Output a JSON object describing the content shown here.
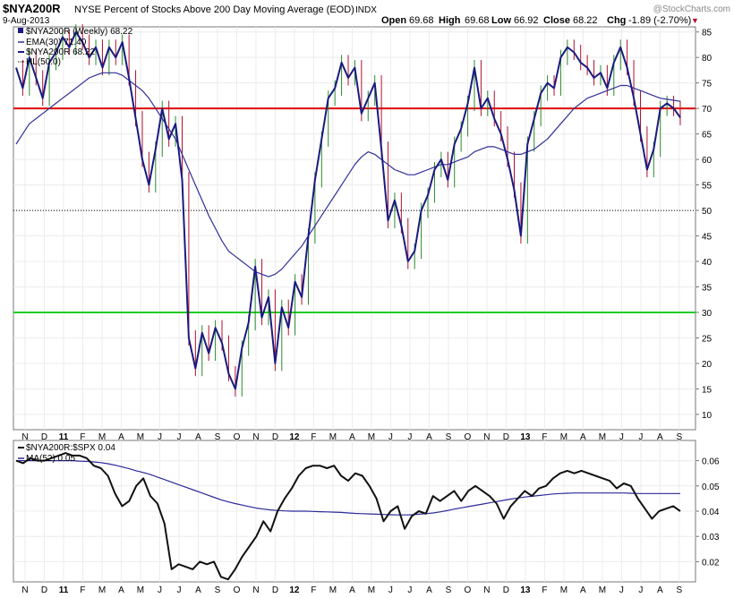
{
  "header": {
    "symbol": "$NYA200R",
    "description": "NYSE Percent of Stocks Above 200 Day Moving Average (EOD)",
    "exchange": "INDX",
    "date": "9-Aug-2013",
    "watermark": "@StockCharts.com",
    "ohlc": {
      "open_label": "Open",
      "open": "69.68",
      "high_label": "High",
      "high": "69.68",
      "low_label": "Low",
      "low": "66.92",
      "close_label": "Close",
      "close": "68.22",
      "chg_label": "Chg",
      "chg": "-1.89 (-2.70%)"
    },
    "chg_marker": "▼"
  },
  "colors": {
    "up_bar": "#2a8a2a",
    "down_bar": "#b01030",
    "main_line": "#1a1a80",
    "ema_line": "#30309a",
    "red_hline": "#e00000",
    "green_hline": "#22cc22",
    "ratio_line": "#111111",
    "ma_line": "#2a2a99"
  },
  "chart_data": [
    {
      "type": "line",
      "title": "$NYA200R (Weekly) 68.22",
      "legend": [
        {
          "label": "EMA(30) 71.40",
          "style": "line"
        },
        {
          "label": "$NYA200R 68.22",
          "style": "line"
        },
        {
          "label": "HL(50.0)",
          "style": "dotted"
        }
      ],
      "ylim": [
        7,
        86
      ],
      "yticks": [
        10,
        15,
        20,
        25,
        30,
        35,
        40,
        45,
        50,
        55,
        60,
        65,
        70,
        75,
        80,
        85
      ],
      "xticks": [
        "N",
        "D",
        "11",
        "F",
        "M",
        "A",
        "M",
        "J",
        "J",
        "A",
        "S",
        "O",
        "N",
        "D",
        "12",
        "F",
        "M",
        "A",
        "M",
        "J",
        "J",
        "A",
        "S",
        "O",
        "N",
        "D",
        "13",
        "F",
        "M",
        "A",
        "M",
        "J",
        "J",
        "A",
        "S"
      ],
      "hlines": [
        {
          "y": 70,
          "style": "red"
        },
        {
          "y": 30,
          "style": "green"
        },
        {
          "y": 50,
          "style": "dotted"
        }
      ],
      "series": [
        {
          "name": "$NYA200R",
          "values": [
            78,
            74,
            80,
            76,
            72,
            79,
            81,
            84,
            82,
            85,
            83,
            80,
            82,
            78,
            82,
            80,
            83,
            76,
            68,
            60,
            55,
            62,
            70,
            64,
            67,
            56,
            25,
            19,
            26,
            22,
            27,
            24,
            18,
            15,
            23,
            28,
            39,
            29,
            33,
            20,
            31,
            27,
            36,
            33,
            45,
            56,
            64,
            72,
            74,
            79,
            76,
            78,
            69,
            72,
            75,
            62,
            48,
            52,
            47,
            40,
            42,
            50,
            53,
            58,
            60,
            56,
            63,
            66,
            71,
            78,
            70,
            72,
            68,
            65,
            60,
            54,
            45,
            63,
            68,
            73,
            75,
            74,
            80,
            82,
            81,
            79,
            78,
            76,
            77,
            74,
            79,
            82,
            78,
            72,
            65,
            58,
            62,
            70,
            71,
            70,
            68.22
          ]
        },
        {
          "name": "EMA(30)",
          "values": [
            63,
            65,
            67,
            68,
            69,
            70,
            71,
            72,
            73,
            74,
            75,
            76,
            76.5,
            77,
            77,
            77,
            76.5,
            75.5,
            74.5,
            73.5,
            72,
            70,
            68,
            66,
            64,
            61,
            58,
            55,
            52,
            49,
            46.5,
            44,
            42,
            41,
            40,
            39,
            38,
            37.5,
            37,
            37.5,
            38.5,
            40,
            41.5,
            43,
            45,
            47,
            49,
            51,
            53,
            55,
            57,
            59,
            60.5,
            61.5,
            61,
            60,
            59,
            58,
            57.5,
            57,
            57,
            57.5,
            58,
            58.5,
            59,
            59,
            59.5,
            60,
            60.5,
            61.5,
            62,
            62.5,
            62.5,
            62,
            61.5,
            61,
            61,
            61.5,
            62,
            63,
            64,
            65.5,
            67,
            68.5,
            70,
            71,
            72,
            72.5,
            73,
            73.5,
            74,
            74.5,
            74.5,
            74,
            73.5,
            73,
            72.5,
            72,
            71.8,
            71.6,
            71.4
          ]
        }
      ]
    },
    {
      "type": "line",
      "title": "$NYA200R:$SPX 0.04",
      "legend": [
        {
          "label": "MA(52) 0.05",
          "style": "line"
        }
      ],
      "ylim": [
        0.012,
        0.068
      ],
      "yticks": [
        0.02,
        0.03,
        0.04,
        0.05,
        0.06
      ],
      "xticks": [
        "N",
        "D",
        "11",
        "F",
        "M",
        "A",
        "M",
        "J",
        "J",
        "A",
        "S",
        "O",
        "N",
        "D",
        "12",
        "F",
        "M",
        "A",
        "M",
        "J",
        "J",
        "A",
        "S",
        "O",
        "N",
        "D",
        "13",
        "F",
        "M",
        "A",
        "M",
        "J",
        "J",
        "A",
        "S"
      ],
      "series": [
        {
          "name": "$NYA200R:$SPX",
          "values": [
            0.06,
            0.059,
            0.061,
            0.06,
            0.06,
            0.061,
            0.062,
            0.063,
            0.062,
            0.062,
            0.061,
            0.058,
            0.057,
            0.054,
            0.047,
            0.042,
            0.044,
            0.05,
            0.053,
            0.046,
            0.043,
            0.035,
            0.017,
            0.019,
            0.018,
            0.017,
            0.02,
            0.019,
            0.02,
            0.014,
            0.013,
            0.017,
            0.022,
            0.026,
            0.03,
            0.036,
            0.032,
            0.04,
            0.045,
            0.049,
            0.054,
            0.057,
            0.058,
            0.058,
            0.057,
            0.058,
            0.054,
            0.052,
            0.055,
            0.054,
            0.05,
            0.045,
            0.036,
            0.04,
            0.042,
            0.033,
            0.038,
            0.04,
            0.039,
            0.046,
            0.044,
            0.046,
            0.048,
            0.044,
            0.048,
            0.05,
            0.048,
            0.046,
            0.043,
            0.037,
            0.042,
            0.045,
            0.048,
            0.046,
            0.049,
            0.05,
            0.053,
            0.055,
            0.056,
            0.055,
            0.056,
            0.055,
            0.054,
            0.053,
            0.052,
            0.049,
            0.051,
            0.05,
            0.045,
            0.041,
            0.037,
            0.04,
            0.041,
            0.042,
            0.04
          ]
        },
        {
          "name": "MA(52)",
          "values": [
            0.06,
            0.06,
            0.06,
            0.06,
            0.06,
            0.06,
            0.06,
            0.06,
            0.06,
            0.0598,
            0.0597,
            0.0595,
            0.0592,
            0.0588,
            0.0582,
            0.0575,
            0.0568,
            0.056,
            0.0553,
            0.0545,
            0.0535,
            0.0525,
            0.0515,
            0.0505,
            0.0495,
            0.0485,
            0.0475,
            0.0465,
            0.0455,
            0.0445,
            0.0437,
            0.043,
            0.0424,
            0.0418,
            0.0412,
            0.0408,
            0.0405,
            0.0403,
            0.0401,
            0.04,
            0.04,
            0.04,
            0.0399,
            0.0398,
            0.0397,
            0.0396,
            0.0395,
            0.0393,
            0.0391,
            0.039,
            0.0389,
            0.0388,
            0.0387,
            0.0386,
            0.0385,
            0.0385,
            0.0386,
            0.0388,
            0.039,
            0.0393,
            0.0397,
            0.0402,
            0.0408,
            0.0413,
            0.0418,
            0.0423,
            0.0428,
            0.0433,
            0.0438,
            0.0443,
            0.0448,
            0.0452,
            0.0456,
            0.0459,
            0.0462,
            0.0465,
            0.0468,
            0.047,
            0.0471,
            0.0472,
            0.0472,
            0.0472,
            0.0472,
            0.0472,
            0.0472,
            0.0472,
            0.0472,
            0.0471,
            0.047,
            0.047,
            0.047,
            0.047,
            0.047,
            0.047,
            0.047
          ]
        }
      ]
    }
  ]
}
